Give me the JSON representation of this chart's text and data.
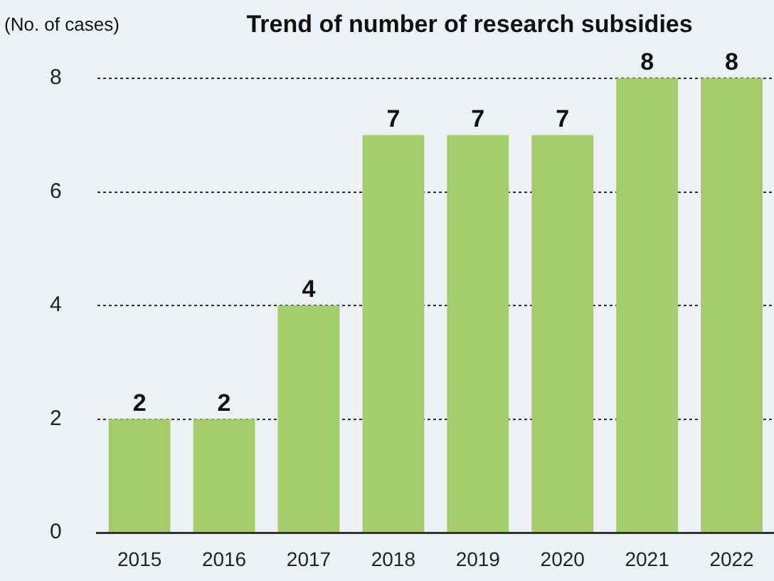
{
  "chart_data": {
    "type": "bar",
    "title": "Trend of number of research subsidies",
    "ylabel": "(No. of cases)",
    "categories": [
      "2015",
      "2016",
      "2017",
      "2018",
      "2019",
      "2020",
      "2021",
      "2022"
    ],
    "values": [
      2,
      2,
      4,
      7,
      7,
      7,
      8,
      8
    ],
    "color": "#a3cd6a",
    "ylim": [
      0,
      8
    ],
    "yticks": [
      0,
      2,
      4,
      6,
      8
    ],
    "grid": "y",
    "data_labels": true
  }
}
